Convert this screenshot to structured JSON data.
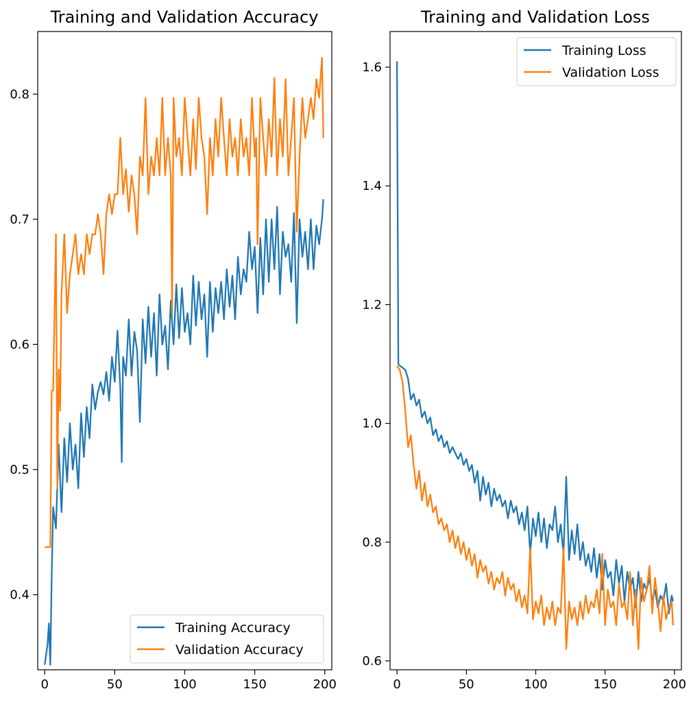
{
  "colors": {
    "training": "#1f77b4",
    "validation": "#ff7f0e"
  },
  "chart_data": [
    {
      "type": "line",
      "title": "Training and Validation Accuracy",
      "xlabel": "",
      "ylabel": "",
      "xlim": [
        -5,
        205
      ],
      "ylim": [
        0.34,
        0.85
      ],
      "xticks": [
        0,
        50,
        100,
        150,
        200
      ],
      "yticks": [
        0.4,
        0.5,
        0.6,
        0.7,
        0.8
      ],
      "xtick_labels": [
        "0",
        "50",
        "100",
        "150",
        "200"
      ],
      "ytick_labels": [
        "0.4",
        "0.5",
        "0.6",
        "0.7",
        "0.8"
      ],
      "grid": false,
      "legend_position": "lower-right",
      "series": [
        {
          "name": "Training Accuracy",
          "color": "#1f77b4",
          "x": [
            0,
            2,
            3,
            4,
            5,
            6,
            8,
            10,
            12,
            14,
            16,
            18,
            20,
            22,
            24,
            26,
            28,
            30,
            32,
            34,
            36,
            38,
            40,
            42,
            44,
            46,
            48,
            50,
            52,
            54,
            55,
            56,
            58,
            60,
            62,
            64,
            66,
            68,
            70,
            72,
            74,
            76,
            78,
            80,
            82,
            84,
            86,
            88,
            90,
            92,
            94,
            96,
            98,
            100,
            102,
            104,
            106,
            108,
            110,
            112,
            114,
            116,
            118,
            120,
            122,
            124,
            126,
            128,
            130,
            132,
            134,
            136,
            138,
            140,
            142,
            144,
            146,
            148,
            150,
            152,
            154,
            156,
            158,
            160,
            162,
            164,
            166,
            168,
            170,
            172,
            174,
            176,
            178,
            180,
            182,
            184,
            186,
            188,
            190,
            192,
            194,
            196,
            198,
            199
          ],
          "values": [
            0.344,
            0.36,
            0.377,
            0.344,
            0.415,
            0.47,
            0.453,
            0.52,
            0.466,
            0.525,
            0.49,
            0.537,
            0.5,
            0.52,
            0.485,
            0.545,
            0.51,
            0.55,
            0.525,
            0.568,
            0.548,
            0.562,
            0.57,
            0.56,
            0.578,
            0.555,
            0.59,
            0.57,
            0.611,
            0.565,
            0.506,
            0.59,
            0.575,
            0.62,
            0.575,
            0.61,
            0.595,
            0.538,
            0.62,
            0.585,
            0.63,
            0.59,
            0.625,
            0.575,
            0.64,
            0.6,
            0.615,
            0.58,
            0.635,
            0.6,
            0.648,
            0.605,
            0.645,
            0.61,
            0.625,
            0.6,
            0.655,
            0.615,
            0.65,
            0.62,
            0.64,
            0.59,
            0.65,
            0.61,
            0.645,
            0.625,
            0.65,
            0.62,
            0.66,
            0.63,
            0.655,
            0.62,
            0.67,
            0.64,
            0.66,
            0.65,
            0.69,
            0.66,
            0.678,
            0.625,
            0.685,
            0.64,
            0.7,
            0.65,
            0.7,
            0.66,
            0.71,
            0.64,
            0.69,
            0.67,
            0.68,
            0.65,
            0.705,
            0.617,
            0.7,
            0.67,
            0.69,
            0.66,
            0.7,
            0.66,
            0.695,
            0.68,
            0.7,
            0.716
          ]
        },
        {
          "name": "Validation Accuracy",
          "color": "#ff7f0e",
          "x": [
            0,
            2,
            3,
            4,
            5,
            6,
            8,
            9,
            10,
            11,
            12,
            14,
            16,
            18,
            20,
            22,
            24,
            26,
            28,
            30,
            32,
            34,
            36,
            38,
            40,
            42,
            44,
            46,
            48,
            50,
            52,
            54,
            56,
            58,
            60,
            62,
            64,
            66,
            68,
            70,
            72,
            74,
            76,
            78,
            80,
            82,
            84,
            86,
            88,
            90,
            91,
            92,
            94,
            96,
            98,
            100,
            102,
            104,
            106,
            108,
            110,
            112,
            114,
            116,
            118,
            120,
            122,
            124,
            126,
            128,
            130,
            132,
            134,
            136,
            138,
            140,
            142,
            144,
            146,
            148,
            150,
            151,
            152,
            154,
            156,
            158,
            160,
            162,
            164,
            166,
            168,
            170,
            172,
            174,
            176,
            178,
            180,
            182,
            184,
            186,
            188,
            190,
            192,
            194,
            196,
            198,
            199
          ],
          "values": [
            0.438,
            0.438,
            0.438,
            0.438,
            0.563,
            0.563,
            0.688,
            0.485,
            0.58,
            0.547,
            0.64,
            0.688,
            0.625,
            0.656,
            0.672,
            0.688,
            0.656,
            0.672,
            0.656,
            0.688,
            0.672,
            0.688,
            0.688,
            0.704,
            0.688,
            0.656,
            0.704,
            0.72,
            0.704,
            0.72,
            0.72,
            0.765,
            0.72,
            0.74,
            0.706,
            0.735,
            0.72,
            0.688,
            0.75,
            0.735,
            0.797,
            0.72,
            0.75,
            0.735,
            0.765,
            0.735,
            0.797,
            0.735,
            0.765,
            0.735,
            0.625,
            0.797,
            0.75,
            0.765,
            0.735,
            0.797,
            0.765,
            0.735,
            0.78,
            0.74,
            0.797,
            0.765,
            0.75,
            0.704,
            0.765,
            0.735,
            0.78,
            0.75,
            0.797,
            0.765,
            0.735,
            0.78,
            0.75,
            0.765,
            0.735,
            0.78,
            0.75,
            0.765,
            0.735,
            0.797,
            0.75,
            0.765,
            0.68,
            0.797,
            0.765,
            0.735,
            0.78,
            0.75,
            0.813,
            0.735,
            0.78,
            0.75,
            0.812,
            0.735,
            0.765,
            0.797,
            0.69,
            0.75,
            0.797,
            0.765,
            0.78,
            0.797,
            0.78,
            0.812,
            0.797,
            0.829,
            0.765
          ]
        }
      ]
    },
    {
      "type": "line",
      "title": "Training and Validation Loss",
      "xlabel": "",
      "ylabel": "",
      "xlim": [
        -5,
        205
      ],
      "ylim": [
        0.585,
        1.66
      ],
      "xticks": [
        0,
        50,
        100,
        150,
        200
      ],
      "yticks": [
        0.6,
        0.8,
        1.0,
        1.2,
        1.4,
        1.6
      ],
      "xtick_labels": [
        "0",
        "50",
        "100",
        "150",
        "200"
      ],
      "ytick_labels": [
        "0.6",
        "0.8",
        "1.0",
        "1.2",
        "1.4",
        "1.6"
      ],
      "grid": false,
      "legend_position": "top-right",
      "series": [
        {
          "name": "Training Loss",
          "color": "#1f77b4",
          "x": [
            0,
            1,
            2,
            4,
            6,
            8,
            10,
            12,
            14,
            16,
            18,
            20,
            22,
            24,
            26,
            28,
            30,
            32,
            34,
            36,
            38,
            40,
            42,
            44,
            46,
            48,
            50,
            52,
            54,
            56,
            58,
            60,
            62,
            64,
            66,
            68,
            70,
            72,
            74,
            76,
            78,
            80,
            82,
            84,
            86,
            88,
            90,
            92,
            94,
            96,
            98,
            100,
            102,
            104,
            106,
            108,
            110,
            112,
            114,
            116,
            118,
            120,
            122,
            124,
            126,
            128,
            130,
            132,
            134,
            136,
            138,
            140,
            142,
            144,
            146,
            148,
            150,
            152,
            154,
            156,
            158,
            160,
            162,
            164,
            166,
            168,
            170,
            172,
            174,
            176,
            178,
            180,
            182,
            184,
            186,
            188,
            190,
            192,
            194,
            196,
            198,
            199
          ],
          "values": [
            1.61,
            1.1,
            1.097,
            1.094,
            1.09,
            1.075,
            1.04,
            1.05,
            1.03,
            1.04,
            1.01,
            1.02,
            1.0,
            1.01,
            0.98,
            0.99,
            0.97,
            0.98,
            0.96,
            0.97,
            0.95,
            0.96,
            0.95,
            0.94,
            0.95,
            0.93,
            0.94,
            0.92,
            0.93,
            0.9,
            0.92,
            0.87,
            0.91,
            0.88,
            0.9,
            0.86,
            0.89,
            0.87,
            0.88,
            0.86,
            0.87,
            0.84,
            0.87,
            0.85,
            0.86,
            0.83,
            0.85,
            0.82,
            0.86,
            0.78,
            0.84,
            0.81,
            0.85,
            0.8,
            0.84,
            0.79,
            0.83,
            0.82,
            0.86,
            0.8,
            0.83,
            0.78,
            0.91,
            0.77,
            0.82,
            0.78,
            0.83,
            0.77,
            0.8,
            0.76,
            0.78,
            0.75,
            0.79,
            0.74,
            0.78,
            0.72,
            0.77,
            0.74,
            0.75,
            0.71,
            0.77,
            0.73,
            0.76,
            0.7,
            0.75,
            0.72,
            0.74,
            0.69,
            0.75,
            0.7,
            0.73,
            0.72,
            0.74,
            0.7,
            0.72,
            0.69,
            0.71,
            0.7,
            0.73,
            0.68,
            0.71,
            0.7
          ]
        },
        {
          "name": "Validation Loss",
          "color": "#ff7f0e",
          "x": [
            0,
            2,
            4,
            6,
            8,
            10,
            12,
            14,
            16,
            18,
            20,
            22,
            24,
            26,
            28,
            30,
            32,
            34,
            36,
            38,
            40,
            42,
            44,
            46,
            48,
            50,
            52,
            54,
            56,
            58,
            60,
            62,
            64,
            66,
            68,
            70,
            72,
            74,
            76,
            78,
            80,
            82,
            84,
            86,
            88,
            90,
            92,
            94,
            96,
            98,
            100,
            102,
            104,
            106,
            108,
            110,
            112,
            114,
            116,
            118,
            120,
            122,
            124,
            126,
            128,
            130,
            132,
            134,
            136,
            138,
            140,
            142,
            144,
            146,
            148,
            150,
            152,
            154,
            156,
            158,
            160,
            162,
            164,
            166,
            168,
            170,
            172,
            174,
            176,
            178,
            180,
            182,
            184,
            186,
            188,
            190,
            192,
            194,
            196,
            198,
            199
          ],
          "values": [
            1.097,
            1.09,
            1.07,
            1.02,
            0.96,
            0.98,
            0.93,
            0.89,
            0.92,
            0.87,
            0.9,
            0.86,
            0.88,
            0.85,
            0.86,
            0.83,
            0.84,
            0.82,
            0.83,
            0.8,
            0.82,
            0.79,
            0.81,
            0.78,
            0.8,
            0.77,
            0.79,
            0.76,
            0.78,
            0.74,
            0.77,
            0.75,
            0.76,
            0.73,
            0.75,
            0.72,
            0.74,
            0.73,
            0.75,
            0.71,
            0.74,
            0.72,
            0.73,
            0.7,
            0.72,
            0.69,
            0.71,
            0.68,
            0.79,
            0.67,
            0.7,
            0.68,
            0.71,
            0.66,
            0.69,
            0.67,
            0.7,
            0.66,
            0.69,
            0.68,
            0.79,
            0.62,
            0.7,
            0.67,
            0.69,
            0.66,
            0.7,
            0.67,
            0.71,
            0.68,
            0.7,
            0.69,
            0.72,
            0.68,
            0.78,
            0.66,
            0.72,
            0.69,
            0.7,
            0.66,
            0.73,
            0.69,
            0.7,
            0.67,
            0.75,
            0.66,
            0.72,
            0.62,
            0.74,
            0.7,
            0.72,
            0.76,
            0.68,
            0.74,
            0.7,
            0.65,
            0.71,
            0.67,
            0.69,
            0.7,
            0.66
          ]
        }
      ]
    }
  ]
}
